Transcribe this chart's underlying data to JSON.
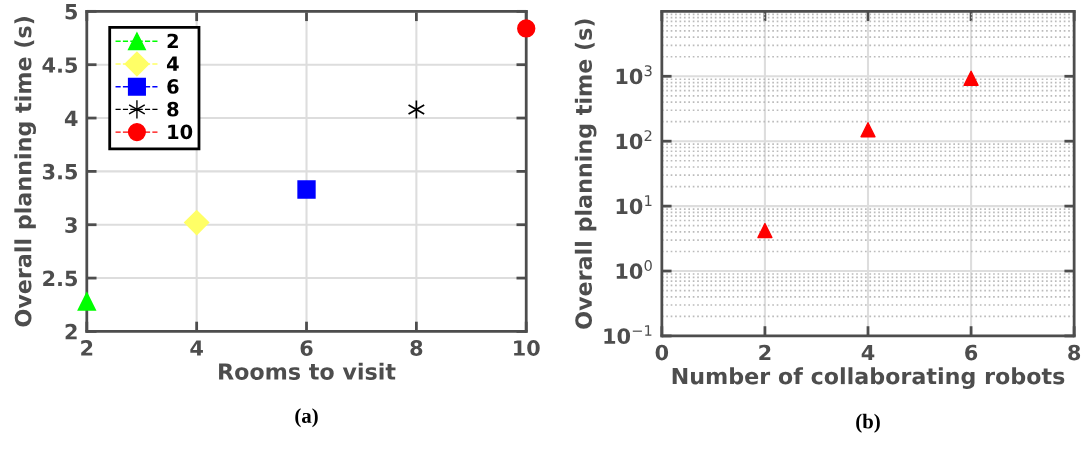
{
  "chart_data": [
    {
      "type": "line",
      "xlabel": "Rooms to visit",
      "ylabel": "Overall planning time (s)",
      "annotations": [
        "(a)"
      ],
      "xlim": [
        2,
        10
      ],
      "xticks": [
        2,
        4,
        6,
        8,
        10
      ],
      "ylim": [
        2,
        5
      ],
      "yticks": [
        2,
        2.5,
        3,
        3.5,
        4,
        4.5,
        5
      ],
      "grid": true,
      "legend": "top left",
      "line_style": "dashed",
      "series": [
        {
          "name": "2",
          "color": "#00ff00",
          "marker": "triangle",
          "x": [
            2
          ],
          "values": [
            2.28
          ]
        },
        {
          "name": "4",
          "color": "#ffff66",
          "marker": "diamond",
          "x": [
            4
          ],
          "values": [
            3.02
          ]
        },
        {
          "name": "6",
          "color": "#0000ff",
          "marker": "square",
          "x": [
            6
          ],
          "values": [
            3.33
          ]
        },
        {
          "name": "8",
          "color": "#000000",
          "marker": "cross",
          "x": [
            8
          ],
          "values": [
            4.08
          ]
        },
        {
          "name": "10",
          "color": "#ff0000",
          "marker": "circle",
          "x": [
            10
          ],
          "values": [
            4.84
          ]
        }
      ]
    },
    {
      "type": "scatter",
      "xlabel": "Number of collaborating robots",
      "ylabel": "Overall planning time (s)",
      "annotations": [
        "(b)"
      ],
      "xlim": [
        0,
        8
      ],
      "xticks": [
        0,
        2,
        4,
        6,
        8
      ],
      "ylim": [
        0.1,
        10000
      ],
      "log": "y",
      "yticks": [
        {
          "value": 0.1,
          "label": "10$^{−1}$"
        },
        {
          "value": 1,
          "label": "10$^{0}$"
        },
        {
          "value": 10,
          "label": "10$^{1}$"
        },
        {
          "value": 100,
          "label": "10$^{2}$"
        },
        {
          "value": 1000,
          "label": "10$^{3}$"
        }
      ],
      "grid": true,
      "marker": "triangle",
      "series": [
        {
          "color": "#ff0000",
          "x": [
            2,
            4,
            6
          ],
          "values": [
            4.2,
            150,
            930
          ]
        }
      ]
    }
  ]
}
